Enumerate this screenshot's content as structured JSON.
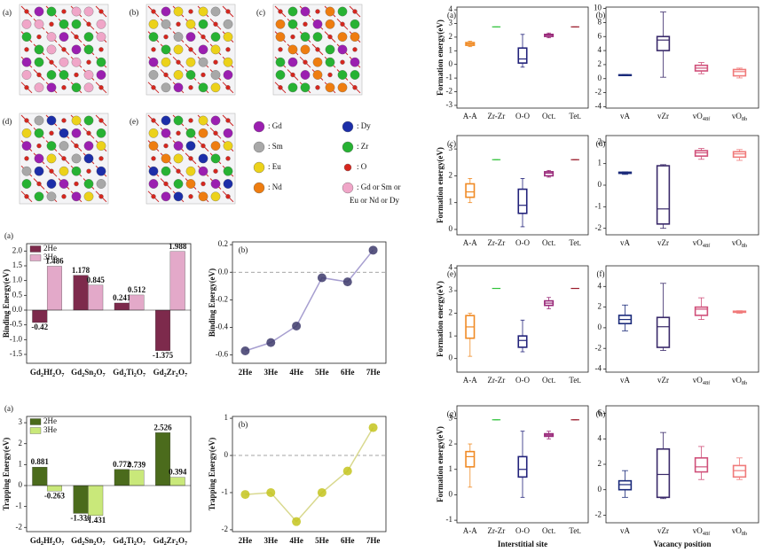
{
  "structure_panel": {
    "labels": [
      "(a)",
      "(b)",
      "(c)",
      "(d)",
      "(e)"
    ],
    "legend": [
      {
        "label": ": Gd",
        "color": "#9b1fb0"
      },
      {
        "label": ": Dy",
        "color": "#1c2ea8"
      },
      {
        "label": ": Sm",
        "color": "#a8a8a8"
      },
      {
        "label": ": Zr",
        "color": "#27b233"
      },
      {
        "label": ": Eu",
        "color": "#ecd21a"
      },
      {
        "label": ": O",
        "color": "#d6261e"
      },
      {
        "label": ": Nd",
        "color": "#ee7d10"
      },
      {
        "label_lines": [
          ": Gd or Sm or",
          "Eu or Nd or Dy"
        ],
        "color": "#f0a6c8"
      }
    ]
  },
  "chart_data": [
    {
      "type": "bar",
      "panel": "(a)",
      "ylabel": "Binding Energy(eV)",
      "categories": [
        "Gd2Hf2O7",
        "Gd2Sn2O7",
        "Gd2Ti2O7",
        "Gd2Zr2O7"
      ],
      "series": [
        {
          "name": "2He",
          "color": "#7d2a4c",
          "values": [
            -0.42,
            1.178,
            0.241,
            -1.375
          ],
          "value_labels": [
            "-0.42",
            "1.178",
            "0.241",
            "-1.375"
          ]
        },
        {
          "name": "3He",
          "color": "#e3a9c9",
          "values": [
            1.486,
            0.845,
            0.512,
            1.988
          ],
          "value_labels": [
            "1.486",
            "0.845",
            "0.512",
            "1.988"
          ]
        }
      ],
      "ylim": [
        -1.8,
        2.25
      ],
      "yticks": [
        -1.5,
        {
          "value": -1,
          "label": "-1.0"
        },
        -0.5,
        {
          "value": 0,
          "label": "0.0"
        },
        0.5,
        {
          "value": 1,
          "label": "1.0"
        },
        1.5,
        {
          "value": 2,
          "label": "2.0"
        }
      ]
    },
    {
      "type": "line",
      "panel": "(b)",
      "ylabel": "Binding Energy(eV)",
      "categories": [
        "2He",
        "3He",
        "4He",
        "5He",
        "6He",
        "7He"
      ],
      "values": [
        -0.57,
        -0.51,
        -0.39,
        -0.04,
        -0.07,
        0.16
      ],
      "color": "#a79fd0",
      "marker_color": "#3d3a6b",
      "hline": 0,
      "ylim": [
        -0.66,
        0.22
      ],
      "yticks": [
        -0.6,
        -0.4,
        -0.2,
        {
          "value": 0,
          "label": "0.0"
        },
        0.2
      ]
    },
    {
      "type": "bar",
      "panel": "(a)",
      "ylabel": "Trapping Energy(eV)",
      "categories": [
        "Gd2Hf2O7",
        "Gd2Sn2O7",
        "Gd2Ti2O7",
        "Gd2Zr2O7"
      ],
      "series": [
        {
          "name": "2He",
          "color": "#4b6b1c",
          "values": [
            0.881,
            -1.33,
            0.772,
            2.526
          ],
          "value_labels": [
            "0.881",
            "-1.330",
            "0.772",
            "2.526"
          ]
        },
        {
          "name": "3He",
          "color": "#c9e87a",
          "values": [
            -0.263,
            -1.431,
            0.739,
            0.394
          ],
          "value_labels": [
            "-0.263",
            "-1.431",
            "0.739",
            "0.394"
          ]
        }
      ],
      "ylim": [
        -2.2,
        3.3
      ],
      "yticks": [
        -2,
        -1,
        0,
        1,
        2,
        3
      ]
    },
    {
      "type": "line",
      "panel": "(b)",
      "ylabel": "Trapping Energy(eV)",
      "categories": [
        "2He",
        "3He",
        "4He",
        "5He",
        "6He",
        "7He"
      ],
      "values": [
        -1.05,
        -1.0,
        -1.78,
        -1.0,
        -0.42,
        0.75
      ],
      "color": "#d9d98f",
      "marker_color": "#c4c41e",
      "hline": 0,
      "ylim": [
        -2.05,
        1.05
      ],
      "yticks": [
        -2,
        -1,
        0,
        1
      ]
    },
    {
      "type": "box",
      "panel": "(a)",
      "ylabel": "Formation energy(eV)",
      "categories": [
        "A-A",
        "Zr-Zr",
        "O-O",
        "Oct.",
        "Tet."
      ],
      "boxes": [
        {
          "whisker_low": 1.3,
          "q1": 1.4,
          "median": 1.5,
          "q3": 1.6,
          "whisker_high": 1.7,
          "color": "#f08a24"
        },
        {
          "whisker_low": 2.75,
          "q1": 2.75,
          "median": 2.75,
          "q3": 2.75,
          "whisker_high": 2.75,
          "color": "#2fc23a"
        },
        {
          "whisker_low": -0.2,
          "q1": 0.1,
          "median": 0.4,
          "q3": 1.2,
          "whisker_high": 2.2,
          "color": "#22227a"
        },
        {
          "whisker_low": 1.95,
          "q1": 2.05,
          "median": 2.15,
          "q3": 2.2,
          "whisker_high": 2.3,
          "color": "#9a2a7a"
        },
        {
          "whisker_low": 2.75,
          "q1": 2.75,
          "median": 2.75,
          "q3": 2.75,
          "whisker_high": 2.75,
          "color": "#9a1a2a"
        }
      ],
      "ylim": [
        -3.2,
        4.2
      ],
      "yticks": [
        -3,
        -2,
        -1,
        0,
        1,
        2,
        3,
        4
      ]
    },
    {
      "type": "box",
      "panel": "(b)",
      "categories": [
        "vA",
        "vZr",
        "vO48f",
        "vO8b"
      ],
      "boxes": [
        {
          "whisker_low": 0.4,
          "q1": 0.45,
          "median": 0.5,
          "q3": 0.55,
          "whisker_high": 0.6,
          "color": "#1a2a7a"
        },
        {
          "whisker_low": 0.2,
          "q1": 4,
          "median": 5.5,
          "q3": 6,
          "whisker_high": 9.5,
          "color": "#3a2a6a"
        },
        {
          "whisker_low": 0.7,
          "q1": 1.1,
          "median": 1.5,
          "q3": 1.9,
          "whisker_high": 2.3,
          "color": "#d0507a"
        },
        {
          "whisker_low": 0.1,
          "q1": 0.4,
          "median": 1.0,
          "q3": 1.3,
          "whisker_high": 1.5,
          "color": "#f07a7a"
        }
      ],
      "ylim": [
        -4.2,
        10.2
      ],
      "yticks": [
        -4,
        -2,
        0,
        2,
        4,
        6,
        8,
        10
      ]
    },
    {
      "type": "box",
      "panel": "(c)",
      "ylabel": "Formation energy(eV)",
      "categories": [
        "A-A",
        "Zr-Zr",
        "O-O",
        "Oct.",
        "Tet."
      ],
      "boxes": [
        {
          "whisker_low": 1.0,
          "q1": 1.2,
          "median": 1.4,
          "q3": 1.7,
          "whisker_high": 1.9,
          "color": "#f08a24"
        },
        {
          "whisker_low": 2.6,
          "q1": 2.6,
          "median": 2.6,
          "q3": 2.6,
          "whisker_high": 2.6,
          "color": "#2fc23a"
        },
        {
          "whisker_low": 0.1,
          "q1": 0.6,
          "median": 0.9,
          "q3": 1.5,
          "whisker_high": 1.9,
          "color": "#22227a"
        },
        {
          "whisker_low": 1.95,
          "q1": 2.0,
          "median": 2.1,
          "q3": 2.15,
          "whisker_high": 2.2,
          "color": "#9a2a7a"
        },
        {
          "whisker_low": 2.6,
          "q1": 2.6,
          "median": 2.6,
          "q3": 2.6,
          "whisker_high": 2.6,
          "color": "#9a1a2a"
        }
      ],
      "ylim": [
        -0.2,
        3.5
      ],
      "yticks": [
        0,
        1,
        2,
        3
      ]
    },
    {
      "type": "box",
      "panel": "(d)",
      "categories": [
        "vA",
        "vZr",
        "vO48f",
        "vO8b"
      ],
      "boxes": [
        {
          "whisker_low": 0.5,
          "q1": 0.55,
          "median": 0.58,
          "q3": 0.6,
          "whisker_high": 0.62,
          "color": "#1a2a7a"
        },
        {
          "whisker_low": -2,
          "q1": -1.8,
          "median": -1.1,
          "q3": 0.9,
          "whisker_high": 0.95,
          "color": "#3a2a6a"
        },
        {
          "whisker_low": 1.2,
          "q1": 1.35,
          "median": 1.5,
          "q3": 1.6,
          "whisker_high": 1.7,
          "color": "#d0507a"
        },
        {
          "whisker_low": 1.15,
          "q1": 1.3,
          "median": 1.45,
          "q3": 1.55,
          "whisker_high": 1.65,
          "color": "#f07a7a"
        }
      ],
      "ylim": [
        -2.3,
        2.3
      ],
      "yticks": [
        -2,
        -1,
        0,
        1,
        2
      ]
    },
    {
      "type": "box",
      "panel": "(e)",
      "ylabel": "Formation energy(eV)",
      "categories": [
        "A-A",
        "Zr-Zr",
        "O-O",
        "Oct.",
        "Tet."
      ],
      "boxes": [
        {
          "whisker_low": 0.1,
          "q1": 0.9,
          "median": 1.4,
          "q3": 1.9,
          "whisker_high": 2.0,
          "color": "#f08a24"
        },
        {
          "whisker_low": 3.1,
          "q1": 3.1,
          "median": 3.1,
          "q3": 3.1,
          "whisker_high": 3.1,
          "color": "#2fc23a"
        },
        {
          "whisker_low": 0.3,
          "q1": 0.5,
          "median": 0.8,
          "q3": 1.0,
          "whisker_high": 1.7,
          "color": "#22227a"
        },
        {
          "whisker_low": 2.2,
          "q1": 2.35,
          "median": 2.45,
          "q3": 2.55,
          "whisker_high": 2.7,
          "color": "#9a2a7a"
        },
        {
          "whisker_low": 3.1,
          "q1": 3.1,
          "median": 3.1,
          "q3": 3.1,
          "whisker_high": 3.1,
          "color": "#9a1a2a"
        }
      ],
      "ylim": [
        -0.6,
        4.1
      ],
      "yticks": [
        0,
        1,
        2,
        3,
        4
      ]
    },
    {
      "type": "box",
      "panel": "(f)",
      "categories": [
        "vA",
        "vZr",
        "vO48f",
        "vO8b"
      ],
      "boxes": [
        {
          "whisker_low": -0.3,
          "q1": 0.4,
          "median": 0.8,
          "q3": 1.2,
          "whisker_high": 2.2,
          "color": "#1a2a7a"
        },
        {
          "whisker_low": -2.2,
          "q1": -1.9,
          "median": 0.1,
          "q3": 1.0,
          "whisker_high": 4.3,
          "color": "#3a2a6a"
        },
        {
          "whisker_low": 0.8,
          "q1": 1.2,
          "median": 1.8,
          "q3": 2.0,
          "whisker_high": 2.9,
          "color": "#d0507a"
        },
        {
          "whisker_low": 1.4,
          "q1": 1.5,
          "median": 1.55,
          "q3": 1.6,
          "whisker_high": 1.65,
          "color": "#f07a7a"
        }
      ],
      "ylim": [
        -4.3,
        6
      ],
      "yticks": [
        -4,
        -2,
        0,
        2,
        4
      ]
    },
    {
      "type": "box",
      "panel": "(g)",
      "ylabel": "Formation energy(eV)",
      "xlabel": "Interstitial site",
      "categories": [
        "A-A",
        "Zr-Zr",
        "O-O",
        "Oct.",
        "Tet."
      ],
      "boxes": [
        {
          "whisker_low": 0.3,
          "q1": 1.1,
          "median": 1.5,
          "q3": 1.7,
          "whisker_high": 2.0,
          "color": "#f08a24"
        },
        {
          "whisker_low": 2.95,
          "q1": 2.95,
          "median": 2.95,
          "q3": 2.95,
          "whisker_high": 2.95,
          "color": "#2fc23a"
        },
        {
          "whisker_low": -0.1,
          "q1": 0.7,
          "median": 1.0,
          "q3": 1.5,
          "whisker_high": 2.5,
          "color": "#22227a"
        },
        {
          "whisker_low": 2.2,
          "q1": 2.3,
          "median": 2.35,
          "q3": 2.4,
          "whisker_high": 2.5,
          "color": "#9a2a7a"
        },
        {
          "whisker_low": 2.95,
          "q1": 2.95,
          "median": 2.95,
          "q3": 2.95,
          "whisker_high": 2.95,
          "color": "#9a1a2a"
        }
      ],
      "ylim": [
        -1.1,
        3.5
      ],
      "yticks": [
        -1,
        0,
        1,
        2,
        3
      ]
    },
    {
      "type": "box",
      "panel": "(h)",
      "xlabel": "Vacancy position",
      "categories": [
        "vA",
        "vZr",
        "vO48f",
        "vO8b"
      ],
      "boxes": [
        {
          "whisker_low": -0.6,
          "q1": 0.0,
          "median": 0.4,
          "q3": 0.7,
          "whisker_high": 1.5,
          "color": "#1a2a7a"
        },
        {
          "whisker_low": -0.7,
          "q1": -0.6,
          "median": 1.2,
          "q3": 3.2,
          "whisker_high": 4.5,
          "color": "#3a2a6a"
        },
        {
          "whisker_low": 0.8,
          "q1": 1.4,
          "median": 1.8,
          "q3": 2.5,
          "whisker_high": 3.4,
          "color": "#d0507a"
        },
        {
          "whisker_low": 0.8,
          "q1": 1.0,
          "median": 1.5,
          "q3": 1.9,
          "whisker_high": 2.5,
          "color": "#f07a7a"
        }
      ],
      "ylim": [
        -2.6,
        6.6
      ],
      "yticks": [
        -2,
        0,
        2,
        4,
        6
      ]
    }
  ]
}
